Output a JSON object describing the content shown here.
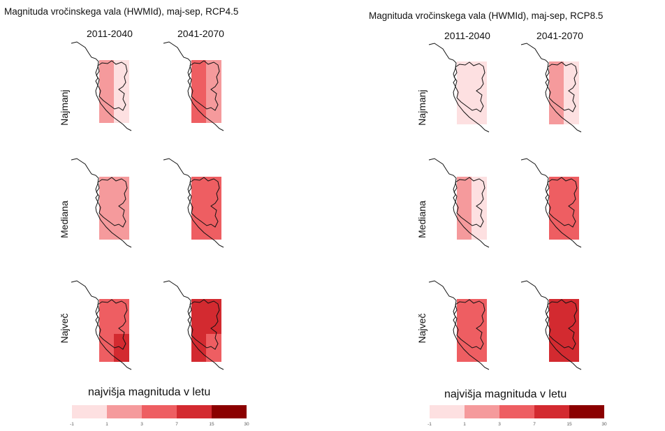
{
  "colors": {
    "c1": "#fde0e1",
    "c2": "#f59a9c",
    "c3": "#ee5e62",
    "c4": "#d32a30",
    "c5": "#8b0000",
    "outline": "#111111"
  },
  "panels": [
    {
      "title": "Magnituda vročinskega vala (HWMId), maj-sep, RCP4.5",
      "columns": [
        "2011-2040",
        "2041-2070"
      ],
      "rows": [
        "Najmanj",
        "Mediana",
        "Največ"
      ],
      "maps": [
        {
          "a": "c2",
          "b": "c1",
          "c": "c2",
          "d": "c1"
        },
        {
          "a": "c3",
          "b": "c2",
          "c": "c3",
          "d": "c2"
        },
        {
          "a": "c2",
          "b": "c2",
          "c": "c2",
          "d": "c2"
        },
        {
          "a": "c3",
          "b": "c3",
          "c": "c3",
          "d": "c3"
        },
        {
          "a": "c3",
          "b": "c3",
          "c": "c3",
          "d": "c4"
        },
        {
          "a": "c4",
          "b": "c4",
          "c": "c4",
          "d": "c3"
        }
      ],
      "legend_title": "najvišja magnituda v letu",
      "legend_ticks": [
        "-1",
        "1",
        "3",
        "7",
        "15",
        "30"
      ]
    },
    {
      "title": "Magnituda vročinskega vala (HWMId), maj-sep, RCP8.5",
      "columns": [
        "2011-2040",
        "2041-2070"
      ],
      "rows": [
        "Najmanj",
        "Mediana",
        "Največ"
      ],
      "maps": [
        {
          "a": "c1",
          "b": "c1",
          "c": "c1",
          "d": "c1"
        },
        {
          "a": "c2",
          "b": "c1",
          "c": "c2",
          "d": "c1"
        },
        {
          "a": "c2",
          "b": "c1",
          "c": "c2",
          "d": "c1"
        },
        {
          "a": "c3",
          "b": "c3",
          "c": "c3",
          "d": "c3"
        },
        {
          "a": "c3",
          "b": "c3",
          "c": "c3",
          "d": "c3"
        },
        {
          "a": "c4",
          "b": "c4",
          "c": "c4",
          "d": "c4"
        }
      ],
      "legend_title": "najvišja magnituda v letu",
      "legend_ticks": [
        "-1",
        "1",
        "3",
        "7",
        "15",
        "30"
      ]
    }
  ]
}
